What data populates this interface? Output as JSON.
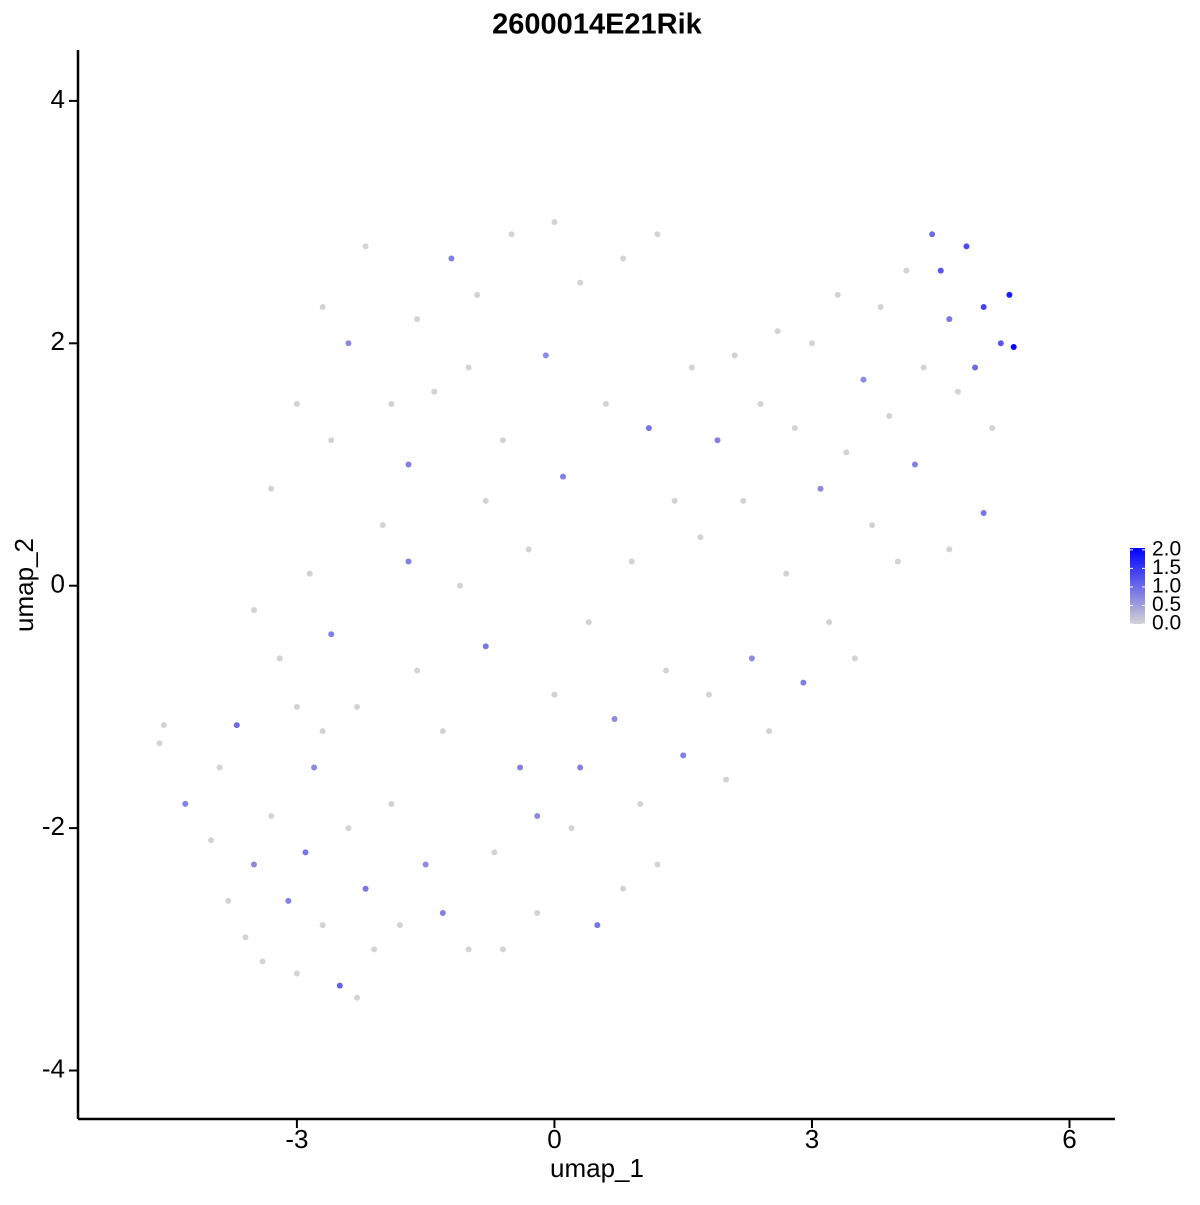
{
  "chart_data": {
    "type": "scatter",
    "title": "2600014E21Rik",
    "x_label": "umap_1",
    "y_label": "umap_2",
    "xlim": [
      -5.55,
      6.53
    ],
    "ylim": [
      -4.4,
      4.42
    ],
    "xticks": [
      -3,
      0,
      3,
      6
    ],
    "yticks": [
      -4,
      -2,
      0,
      2,
      4
    ],
    "grid": false,
    "x": [
      -4.6,
      -4.55,
      -4.3,
      -4.0,
      -3.9,
      -3.7,
      -3.8,
      -3.6,
      -3.5,
      -3.4,
      -3.3,
      -3.2,
      -3.1,
      -3.0,
      -3.0,
      -2.9,
      -2.85,
      -2.8,
      -2.7,
      -2.6,
      -2.5,
      -2.4,
      -2.3,
      -2.2,
      -2.1,
      -2.0,
      -1.9,
      -1.8,
      -1.7,
      -1.6,
      -1.5,
      -1.4,
      -1.3,
      -1.2,
      -1.1,
      -1.0,
      -0.9,
      -0.8,
      -0.7,
      -0.6,
      -0.5,
      -0.4,
      -0.3,
      -0.2,
      -0.1,
      0.0,
      0.0,
      0.1,
      0.2,
      0.3,
      0.4,
      0.5,
      0.6,
      0.7,
      0.8,
      0.9,
      1.0,
      1.1,
      1.2,
      1.3,
      1.4,
      1.5,
      1.6,
      1.7,
      1.8,
      1.9,
      2.0,
      2.1,
      2.2,
      2.3,
      2.4,
      2.5,
      2.6,
      2.7,
      2.8,
      2.9,
      3.0,
      3.1,
      3.2,
      3.3,
      3.4,
      3.5,
      3.6,
      3.7,
      3.8,
      3.9,
      4.0,
      4.1,
      4.2,
      4.3,
      4.4,
      4.5,
      4.6,
      4.7,
      4.8,
      4.9,
      5.0,
      5.1,
      5.2,
      5.3,
      5.35,
      5.0,
      4.6,
      -2.6,
      -2.4,
      -2.2,
      -1.9,
      -1.6,
      -2.7,
      -3.5,
      -3.3,
      -3.0,
      -2.7,
      -1.0,
      -0.6,
      0.3,
      1.2,
      0.8,
      -0.2,
      -1.3,
      -2.3,
      -1.7,
      -0.8
    ],
    "y": [
      -1.3,
      -1.15,
      -1.8,
      -2.1,
      -1.5,
      -1.15,
      -2.6,
      -2.9,
      -2.3,
      -3.1,
      -1.9,
      -0.6,
      -2.6,
      -1.0,
      -3.2,
      -2.2,
      0.1,
      -1.5,
      -2.8,
      -0.4,
      -3.3,
      -2.0,
      -1.0,
      -2.5,
      -3.0,
      0.5,
      -1.8,
      -2.8,
      1.0,
      -0.7,
      -2.3,
      1.6,
      -1.2,
      2.7,
      0.0,
      -3.0,
      2.4,
      -0.5,
      -2.2,
      1.2,
      2.9,
      -1.5,
      0.3,
      -2.7,
      1.9,
      -0.9,
      3.0,
      0.9,
      -2.0,
      2.5,
      -0.3,
      -2.8,
      1.5,
      -1.1,
      2.7,
      0.2,
      -1.8,
      1.3,
      2.9,
      -0.7,
      0.7,
      -1.4,
      1.8,
      0.4,
      -0.9,
      1.2,
      -1.6,
      1.9,
      0.7,
      -0.6,
      1.5,
      -1.2,
      2.1,
      0.1,
      1.3,
      -0.8,
      2.0,
      0.8,
      -0.3,
      2.4,
      1.1,
      -0.6,
      1.7,
      0.5,
      2.3,
      1.4,
      0.2,
      2.6,
      1.0,
      1.8,
      2.9,
      2.6,
      2.2,
      1.6,
      2.8,
      1.8,
      2.3,
      1.3,
      2.0,
      2.4,
      1.97,
      0.6,
      0.3,
      1.2,
      2.0,
      2.8,
      1.5,
      2.2,
      -1.2,
      -0.2,
      0.8,
      1.5,
      2.3,
      1.8,
      -3.0,
      -1.5,
      -2.3,
      -2.5,
      -1.9,
      -2.7,
      -3.4,
      0.2,
      0.7
    ],
    "values": [
      0,
      0,
      0.8,
      0,
      0,
      1,
      0,
      0,
      0.7,
      0,
      0,
      0,
      0.8,
      0,
      0,
      0.9,
      0,
      0.7,
      0,
      0.8,
      1.1,
      0,
      0,
      0.9,
      0,
      0,
      0,
      0,
      0.8,
      0,
      0.7,
      0,
      0,
      0.8,
      0,
      0,
      0,
      0.9,
      0,
      0,
      0,
      0.8,
      0,
      0,
      0.7,
      0,
      0,
      0.8,
      0,
      0,
      0,
      0.9,
      0,
      0.7,
      0,
      0,
      0,
      0.9,
      0,
      0,
      0,
      0.8,
      0,
      0,
      0,
      0.8,
      0,
      0,
      0,
      0.7,
      0,
      0,
      0,
      0,
      0,
      0.8,
      0,
      0.7,
      0,
      0,
      0,
      0,
      0.7,
      0,
      0,
      0,
      0,
      0,
      0.8,
      0,
      1.0,
      1.2,
      0.9,
      0,
      1.3,
      1.0,
      1.4,
      0,
      1.2,
      1.8,
      2.0,
      0.9,
      0,
      0,
      0.7,
      0,
      0,
      0,
      0,
      0,
      0,
      0,
      0,
      0,
      0,
      0.8,
      0,
      0,
      0.7,
      0.8,
      0,
      0.8,
      0
    ],
    "colorbar": {
      "lim": [
        0,
        2.05
      ],
      "colors": [
        "#d3d3d3",
        "#0000ff"
      ],
      "ticks": [
        {
          "value": 0,
          "label": "0.0"
        },
        {
          "value": 0.5,
          "label": "0.5"
        },
        {
          "value": 1,
          "label": "1.0"
        },
        {
          "value": 1.5,
          "label": "1.5"
        },
        {
          "value": 2,
          "label": "2.0"
        }
      ]
    }
  }
}
